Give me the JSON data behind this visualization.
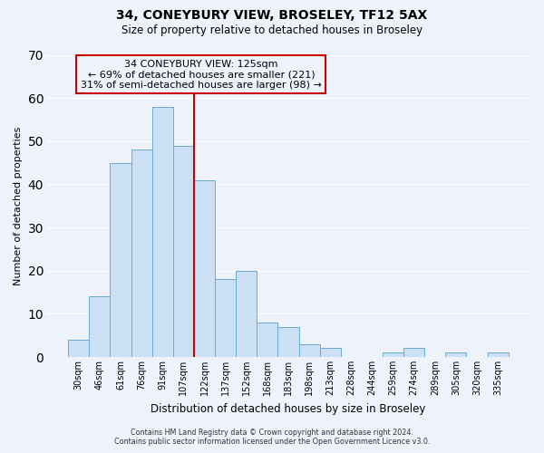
{
  "title": "34, CONEYBURY VIEW, BROSELEY, TF12 5AX",
  "subtitle": "Size of property relative to detached houses in Broseley",
  "xlabel": "Distribution of detached houses by size in Broseley",
  "ylabel": "Number of detached properties",
  "bar_labels": [
    "30sqm",
    "46sqm",
    "61sqm",
    "76sqm",
    "91sqm",
    "107sqm",
    "122sqm",
    "137sqm",
    "152sqm",
    "168sqm",
    "183sqm",
    "198sqm",
    "213sqm",
    "228sqm",
    "244sqm",
    "259sqm",
    "274sqm",
    "289sqm",
    "305sqm",
    "320sqm",
    "335sqm"
  ],
  "bar_values": [
    4,
    14,
    45,
    48,
    58,
    49,
    41,
    18,
    20,
    8,
    7,
    3,
    2,
    0,
    0,
    1,
    2,
    0,
    1,
    0,
    1
  ],
  "bar_color": "#cce0f5",
  "bar_edge_color": "#6aaad4",
  "ylim": [
    0,
    70
  ],
  "yticks": [
    0,
    10,
    20,
    30,
    40,
    50,
    60,
    70
  ],
  "vline_color": "#cc0000",
  "vline_pos": 5.5,
  "annotation_title": "34 CONEYBURY VIEW: 125sqm",
  "annotation_line1": "← 69% of detached houses are smaller (221)",
  "annotation_line2": "31% of semi-detached houses are larger (98) →",
  "annotation_box_edgecolor": "#cc0000",
  "background_color": "#eef2fb",
  "grid_color": "#ffffff",
  "footer1": "Contains HM Land Registry data © Crown copyright and database right 2024.",
  "footer2": "Contains public sector information licensed under the Open Government Licence v3.0."
}
